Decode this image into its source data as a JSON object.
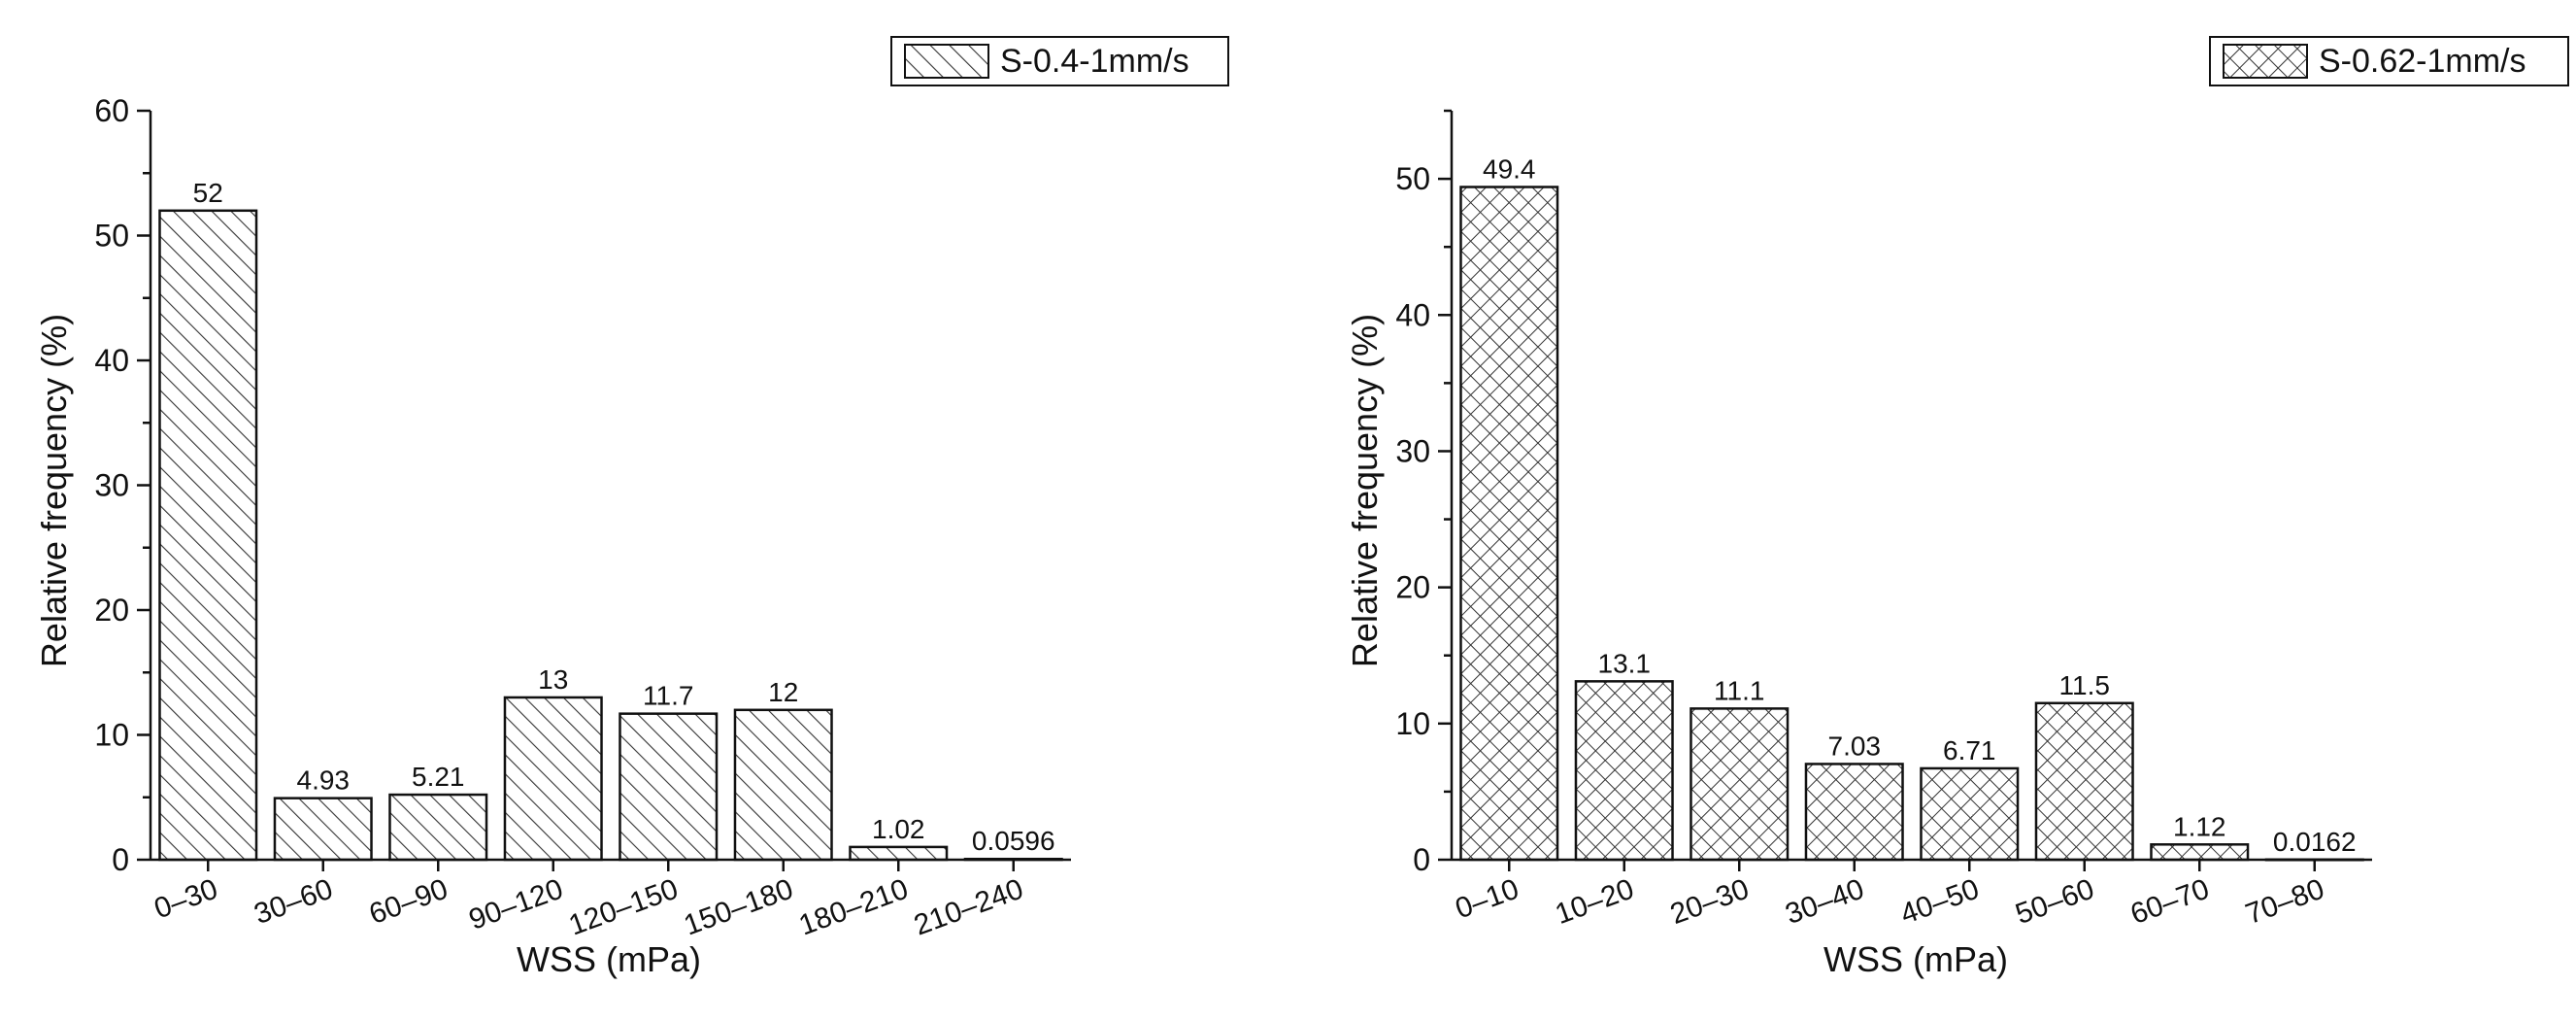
{
  "chart_data": [
    {
      "type": "bar",
      "xlabel": "WSS (mPa)",
      "ylabel": "Relative frequency (%)",
      "categories": [
        "0–30",
        "30–60",
        "60–90",
        "90–120",
        "120–150",
        "150–180",
        "180–210",
        "210–240"
      ],
      "series": [
        {
          "name": "S-0.4-1mm/s",
          "values": [
            52,
            4.93,
            5.21,
            13,
            11.7,
            12,
            1.02,
            0.0596
          ]
        }
      ],
      "value_labels": [
        "52",
        "4.93",
        "5.21",
        "13",
        "11.7",
        "12",
        "1.02",
        "0.0596"
      ],
      "ylim": [
        0,
        60
      ],
      "yticks": [
        "0",
        "10",
        "20",
        "30",
        "40",
        "50",
        "60"
      ],
      "pattern": "diagonal-hatch",
      "legend_position": "top-right",
      "grid": false
    },
    {
      "type": "bar",
      "xlabel": "WSS (mPa)",
      "ylabel": "Relative frequency (%)",
      "categories": [
        "0–10",
        "10–20",
        "20–30",
        "30–40",
        "40–50",
        "50–60",
        "60–70",
        "70–80"
      ],
      "series": [
        {
          "name": "S-0.62-1mm/s",
          "values": [
            49.4,
            13.1,
            11.1,
            7.03,
            6.71,
            11.5,
            1.12,
            0.0162
          ]
        }
      ],
      "value_labels": [
        "49.4",
        "13.1",
        "11.1",
        "7.03",
        "6.71",
        "11.5",
        "1.12",
        "0.0162"
      ],
      "ylim": [
        0,
        55
      ],
      "yticks": [
        "0",
        "10",
        "20",
        "30",
        "40",
        "50"
      ],
      "pattern": "cross-hatch",
      "legend_position": "top-right",
      "grid": false
    }
  ]
}
